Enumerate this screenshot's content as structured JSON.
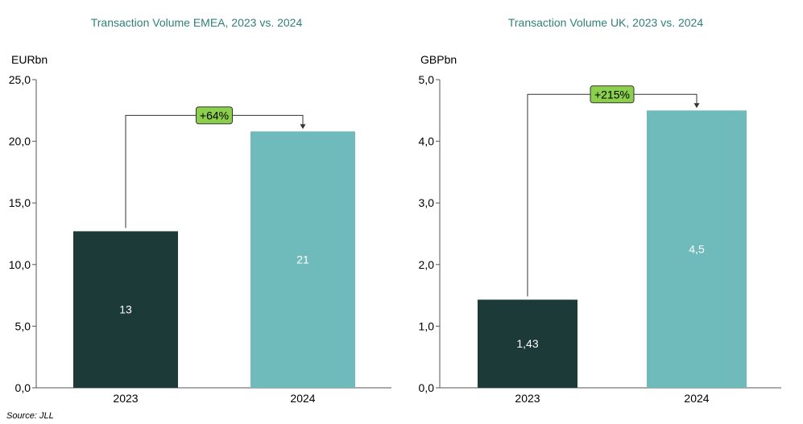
{
  "chart_data": [
    {
      "type": "bar",
      "title": "Transaction Volume EMEA, 2023 vs. 2024",
      "unit_label": "EURbn",
      "categories": [
        "2023",
        "2024"
      ],
      "values": [
        12.7,
        20.8
      ],
      "data_labels": [
        "13",
        "21"
      ],
      "bar_colors": [
        "#1b3a38",
        "#6fbbbc"
      ],
      "ylim": [
        0,
        25
      ],
      "yticks": [
        0,
        5,
        10,
        15,
        20,
        25
      ],
      "ytick_labels": [
        "0,0",
        "5,0",
        "10,0",
        "15,0",
        "20,0",
        "25,0"
      ],
      "growth_label": "+64%",
      "growth_color": "#8ccf4d"
    },
    {
      "type": "bar",
      "title": "Transaction Volume UK, 2023 vs. 2024",
      "unit_label": "GBPbn",
      "categories": [
        "2023",
        "2024"
      ],
      "values": [
        1.43,
        4.5
      ],
      "data_labels": [
        "1,43",
        "4,5"
      ],
      "bar_colors": [
        "#1b3a38",
        "#6fbbbc"
      ],
      "ylim": [
        0,
        5
      ],
      "yticks": [
        0,
        1,
        2,
        3,
        4,
        5
      ],
      "ytick_labels": [
        "0,0",
        "1,0",
        "2,0",
        "3,0",
        "4,0",
        "5,0"
      ],
      "growth_label": "+215%",
      "growth_color": "#8ccf4d"
    }
  ],
  "source": "Source: JLL"
}
